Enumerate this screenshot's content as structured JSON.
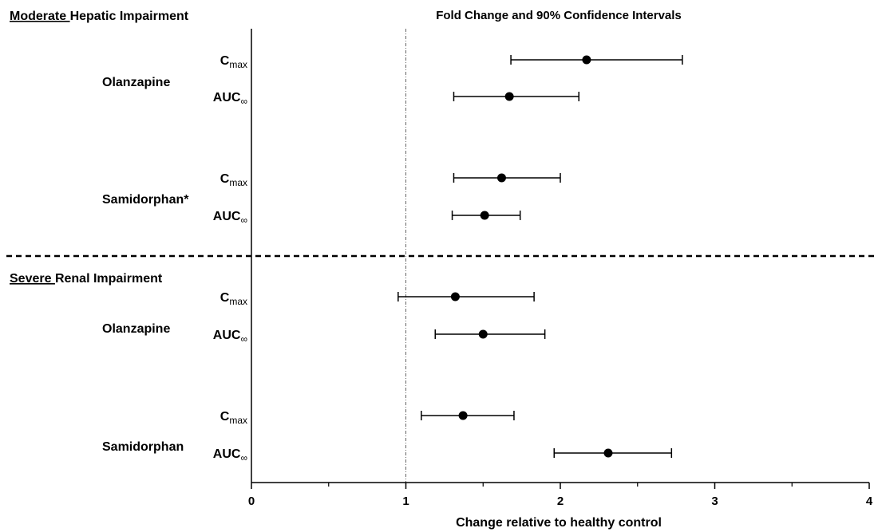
{
  "chart_data": {
    "type": "forest",
    "title": "Fold Change and 90% Confidence Intervals",
    "xlabel": "Change relative to healthy control",
    "xlim": [
      0,
      4
    ],
    "x_ticks": [
      "0",
      "1",
      "2",
      "3",
      "4"
    ],
    "reference_line": 1,
    "groups": [
      {
        "underlined": "Moderate ",
        "rest": "Hepatic Impairment",
        "drugs": [
          {
            "name": "Olanzapine",
            "params": [
              {
                "main": "C",
                "sub": "max",
                "point": 2.17,
                "lower": 1.68,
                "upper": 2.79
              },
              {
                "main": "AUC",
                "sub": "∞",
                "point": 1.67,
                "lower": 1.31,
                "upper": 2.12
              }
            ]
          },
          {
            "name": "Samidorphan*",
            "params": [
              {
                "main": "C",
                "sub": "max",
                "point": 1.62,
                "lower": 1.31,
                "upper": 2.0
              },
              {
                "main": "AUC",
                "sub": "∞",
                "point": 1.51,
                "lower": 1.3,
                "upper": 1.74
              }
            ]
          }
        ]
      },
      {
        "underlined": "Severe ",
        "rest": "Renal Impairment",
        "drugs": [
          {
            "name": "Olanzapine",
            "params": [
              {
                "main": "C",
                "sub": "max",
                "point": 1.32,
                "lower": 0.95,
                "upper": 1.83
              },
              {
                "main": "AUC",
                "sub": "∞",
                "point": 1.5,
                "lower": 1.19,
                "upper": 1.9
              }
            ]
          },
          {
            "name": "Samidorphan",
            "params": [
              {
                "main": "C",
                "sub": "max",
                "point": 1.37,
                "lower": 1.1,
                "upper": 1.7
              },
              {
                "main": "AUC",
                "sub": "∞",
                "point": 2.31,
                "lower": 1.96,
                "upper": 2.72
              }
            ]
          }
        ]
      }
    ]
  }
}
